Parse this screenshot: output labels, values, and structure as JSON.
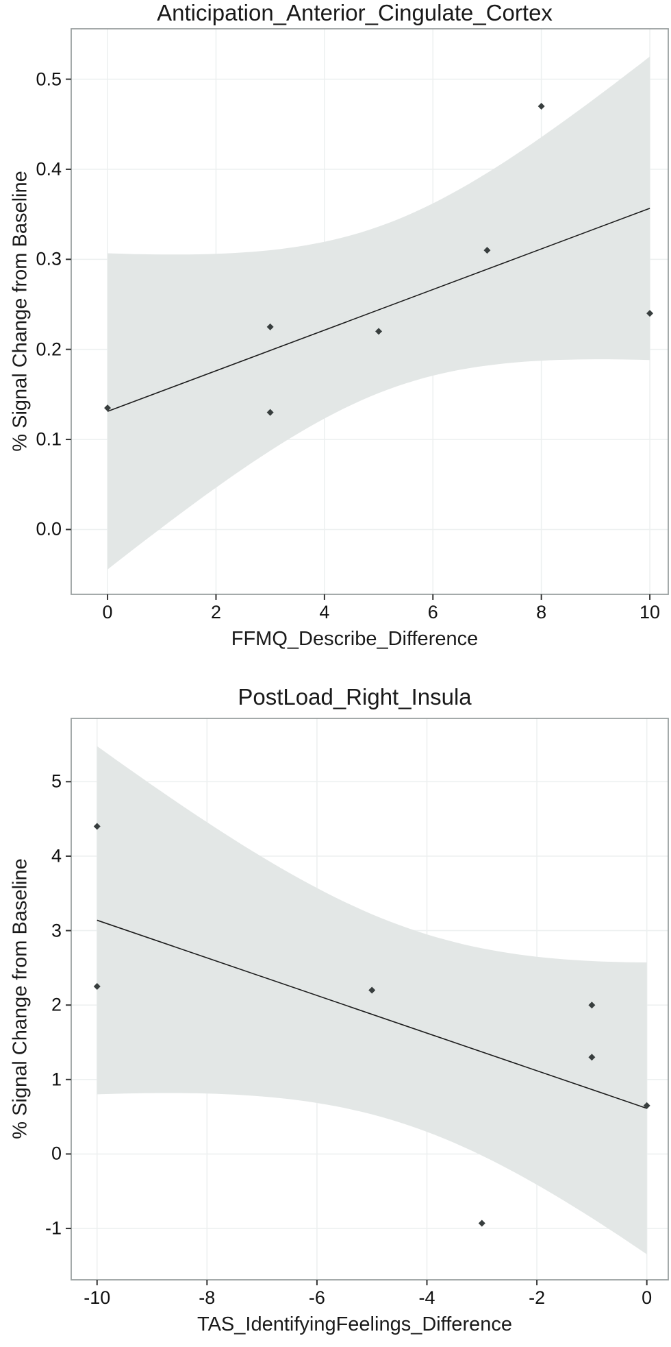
{
  "figure": {
    "background": "#ffffff",
    "panel_border_color": "#9aa0a0",
    "gridline_color": "#edf0f0",
    "tick_color": "#333333"
  },
  "chart_data": [
    {
      "type": "scatter",
      "title": "Anticipation_Anterior_Cingulate_Cortex",
      "xlabel": "FFMQ_Describe_Difference",
      "ylabel": "% Signal Change from Baseline",
      "points": [
        [
          0,
          0.135
        ],
        [
          3,
          0.13
        ],
        [
          3,
          0.225
        ],
        [
          5,
          0.22
        ],
        [
          7,
          0.31
        ],
        [
          8,
          0.47
        ],
        [
          10,
          0.24
        ]
      ],
      "x_ticks": [
        0,
        2,
        4,
        6,
        8,
        10
      ],
      "x_tick_labels": [
        "0",
        "2",
        "4",
        "6",
        "8",
        "10"
      ],
      "y_ticks": [
        0.0,
        0.1,
        0.2,
        0.3,
        0.4,
        0.5
      ],
      "y_tick_labels": [
        "0.0",
        "0.1",
        "0.2",
        "0.3",
        "0.4",
        "0.5"
      ],
      "xlim": [
        -0.67,
        10.34
      ],
      "ylim": [
        -0.072,
        0.556
      ],
      "grid": "major",
      "legend": "none",
      "smooth": {
        "method": "lm",
        "ci": 0.95
      },
      "trend_line": {
        "x": [
          0,
          10
        ],
        "y": [
          0.136,
          0.356
        ]
      },
      "point_color": "#383e3e",
      "line_color": "#1c1c1c",
      "band_color": "#e3e7e6"
    },
    {
      "type": "scatter",
      "title": "PostLoad_Right_Insula",
      "xlabel": "TAS_IdentifyingFeelings_Difference",
      "ylabel": "% Signal Change from Baseline",
      "points": [
        [
          -10,
          4.4
        ],
        [
          -10,
          2.25
        ],
        [
          -5,
          2.2
        ],
        [
          -3,
          -0.93
        ],
        [
          -1,
          2.0
        ],
        [
          -1,
          1.3
        ],
        [
          0,
          0.65
        ]
      ],
      "x_ticks": [
        -10,
        -8,
        -6,
        -4,
        -2,
        0
      ],
      "x_tick_labels": [
        "-10",
        "-8",
        "-6",
        "-4",
        "-2",
        "0"
      ],
      "y_ticks": [
        -1,
        0,
        1,
        2,
        3,
        4,
        5
      ],
      "y_tick_labels": [
        "-1",
        "0",
        "1",
        "2",
        "3",
        "4",
        "5"
      ],
      "xlim": [
        -10.47,
        0.39
      ],
      "ylim": [
        -1.69,
        5.85
      ],
      "grid": "major",
      "legend": "none",
      "smooth": {
        "method": "lm",
        "ci": 0.95
      },
      "trend_line": {
        "x": [
          -10,
          0
        ],
        "y": [
          3.14,
          0.64
        ]
      },
      "point_color": "#383e3e",
      "line_color": "#1c1c1c",
      "band_color": "#e3e7e6"
    }
  ]
}
